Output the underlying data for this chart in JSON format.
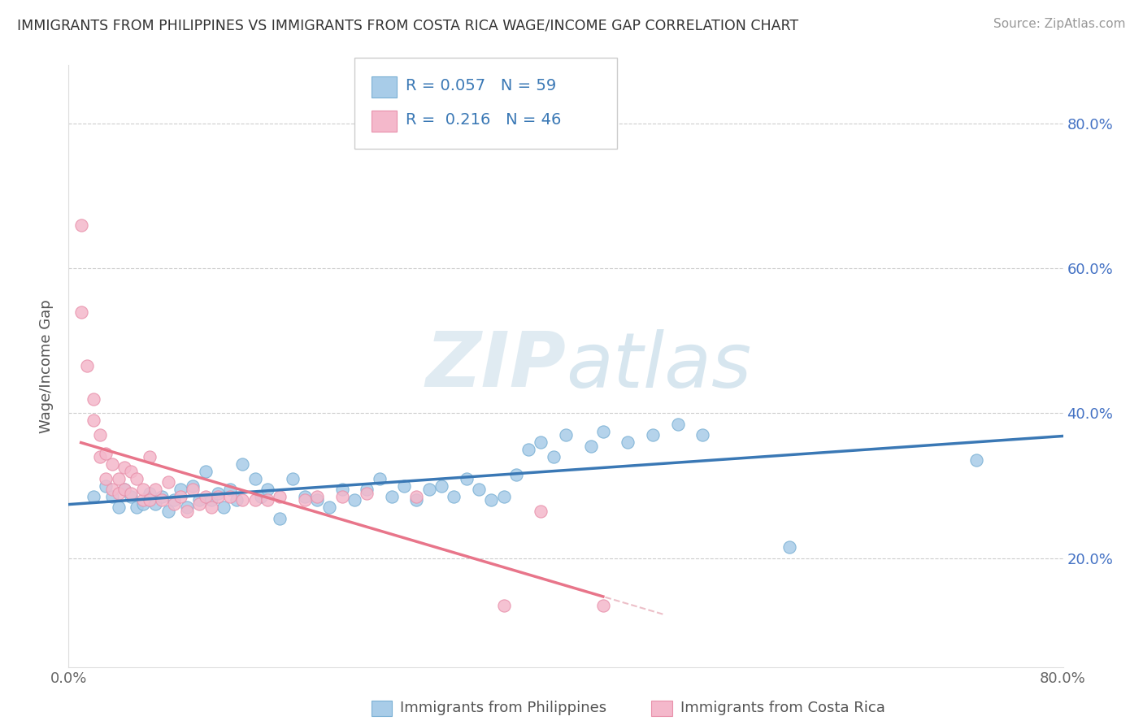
{
  "title": "IMMIGRANTS FROM PHILIPPINES VS IMMIGRANTS FROM COSTA RICA WAGE/INCOME GAP CORRELATION CHART",
  "source": "Source: ZipAtlas.com",
  "ylabel": "Wage/Income Gap",
  "xlim": [
    0.0,
    0.8
  ],
  "ylim": [
    0.05,
    0.88
  ],
  "yticks": [
    0.2,
    0.4,
    0.6,
    0.8
  ],
  "ytick_labels": [
    "20.0%",
    "40.0%",
    "60.0%",
    "80.0%"
  ],
  "watermark_zip": "ZIP",
  "watermark_atlas": "atlas",
  "blue_color": "#a8cce8",
  "pink_color": "#f4b8cb",
  "blue_line_color": "#3a78b5",
  "pink_line_color": "#e8758a",
  "pink_dash_color": "#e8b0bb",
  "blue_scatter_x": [
    0.02,
    0.03,
    0.035,
    0.04,
    0.045,
    0.05,
    0.055,
    0.06,
    0.065,
    0.07,
    0.075,
    0.08,
    0.085,
    0.09,
    0.095,
    0.1,
    0.105,
    0.11,
    0.115,
    0.12,
    0.125,
    0.13,
    0.135,
    0.14,
    0.15,
    0.155,
    0.16,
    0.17,
    0.18,
    0.19,
    0.2,
    0.21,
    0.22,
    0.23,
    0.24,
    0.25,
    0.26,
    0.27,
    0.28,
    0.29,
    0.3,
    0.31,
    0.32,
    0.33,
    0.34,
    0.35,
    0.36,
    0.37,
    0.38,
    0.39,
    0.4,
    0.42,
    0.43,
    0.45,
    0.47,
    0.49,
    0.51,
    0.58,
    0.73
  ],
  "blue_scatter_y": [
    0.285,
    0.3,
    0.285,
    0.27,
    0.295,
    0.285,
    0.27,
    0.275,
    0.29,
    0.275,
    0.285,
    0.265,
    0.28,
    0.295,
    0.27,
    0.3,
    0.28,
    0.32,
    0.28,
    0.29,
    0.27,
    0.295,
    0.28,
    0.33,
    0.31,
    0.285,
    0.295,
    0.255,
    0.31,
    0.285,
    0.28,
    0.27,
    0.295,
    0.28,
    0.295,
    0.31,
    0.285,
    0.3,
    0.28,
    0.295,
    0.3,
    0.285,
    0.31,
    0.295,
    0.28,
    0.285,
    0.315,
    0.35,
    0.36,
    0.34,
    0.37,
    0.355,
    0.375,
    0.36,
    0.37,
    0.385,
    0.37,
    0.215,
    0.335
  ],
  "pink_scatter_x": [
    0.01,
    0.01,
    0.015,
    0.02,
    0.02,
    0.025,
    0.025,
    0.03,
    0.03,
    0.035,
    0.035,
    0.04,
    0.04,
    0.045,
    0.045,
    0.05,
    0.05,
    0.055,
    0.06,
    0.06,
    0.065,
    0.065,
    0.07,
    0.075,
    0.08,
    0.085,
    0.09,
    0.095,
    0.1,
    0.105,
    0.11,
    0.115,
    0.12,
    0.13,
    0.14,
    0.15,
    0.16,
    0.17,
    0.19,
    0.2,
    0.22,
    0.24,
    0.28,
    0.35,
    0.38,
    0.43
  ],
  "pink_scatter_y": [
    0.66,
    0.54,
    0.465,
    0.42,
    0.39,
    0.37,
    0.34,
    0.345,
    0.31,
    0.33,
    0.295,
    0.31,
    0.29,
    0.325,
    0.295,
    0.32,
    0.29,
    0.31,
    0.28,
    0.295,
    0.34,
    0.28,
    0.295,
    0.28,
    0.305,
    0.275,
    0.285,
    0.265,
    0.295,
    0.275,
    0.285,
    0.27,
    0.285,
    0.285,
    0.28,
    0.28,
    0.28,
    0.285,
    0.28,
    0.285,
    0.285,
    0.29,
    0.285,
    0.135,
    0.265,
    0.135
  ],
  "legend_text1": "R = 0.057   N = 59",
  "legend_text2": "R =  0.216   N = 46",
  "bottom_label1": "Immigrants from Philippines",
  "bottom_label2": "Immigrants from Costa Rica"
}
